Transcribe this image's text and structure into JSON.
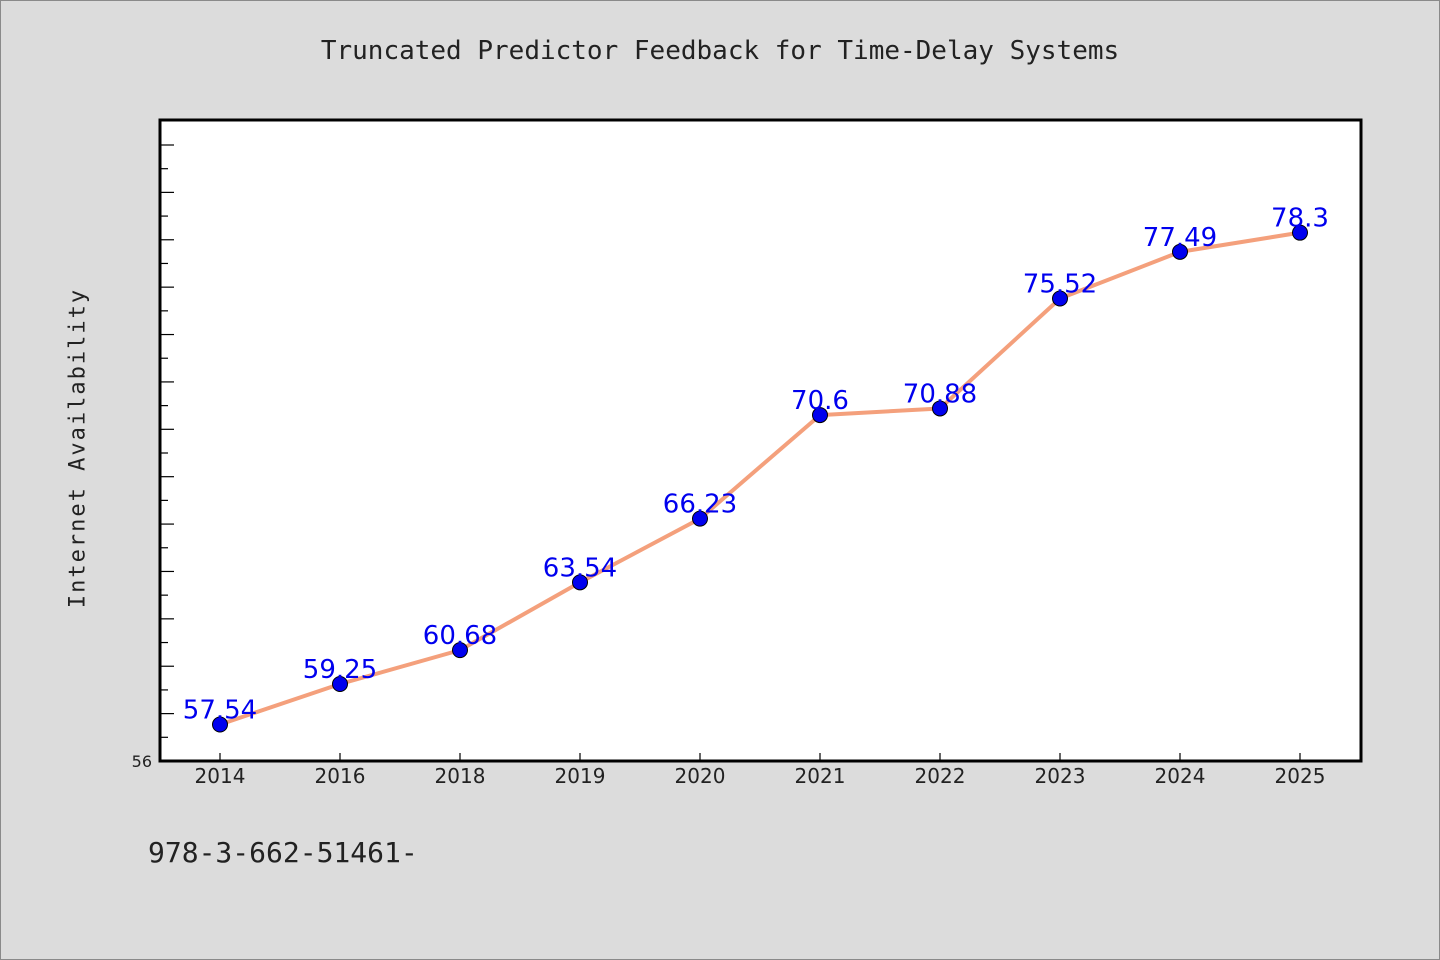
{
  "title": "Truncated Predictor Feedback for Time-Delay Systems",
  "footer_text": "978-3-662-51461-",
  "colors": {
    "background": "#dcdcdc",
    "plot_background": "#ffffff",
    "line": "#f4a07c",
    "marker": "#0000ee",
    "data_label": "#0000ee"
  },
  "chart_data": {
    "type": "line",
    "title": "Truncated Predictor Feedback for Time-Delay Systems",
    "xlabel": "",
    "ylabel": "Internet Availability",
    "categories": [
      "2014",
      "2016",
      "2018",
      "2019",
      "2020",
      "2021",
      "2022",
      "2023",
      "2024",
      "2025"
    ],
    "series": [
      {
        "values": [
          57.54,
          59.25,
          60.68,
          63.54,
          66.23,
          70.6,
          70.88,
          75.52,
          77.49,
          78.3
        ],
        "labels": [
          "57.54",
          "59.25",
          "60.68",
          "63.54",
          "66.23",
          "70.6",
          "70.88",
          "75.52",
          "77.49",
          "78.3"
        ]
      }
    ],
    "ylim": [
      56,
      82
    ],
    "y_tick_step": 1,
    "y_tick_labels_shown": [
      "56"
    ],
    "grid": false,
    "legend": "none"
  }
}
